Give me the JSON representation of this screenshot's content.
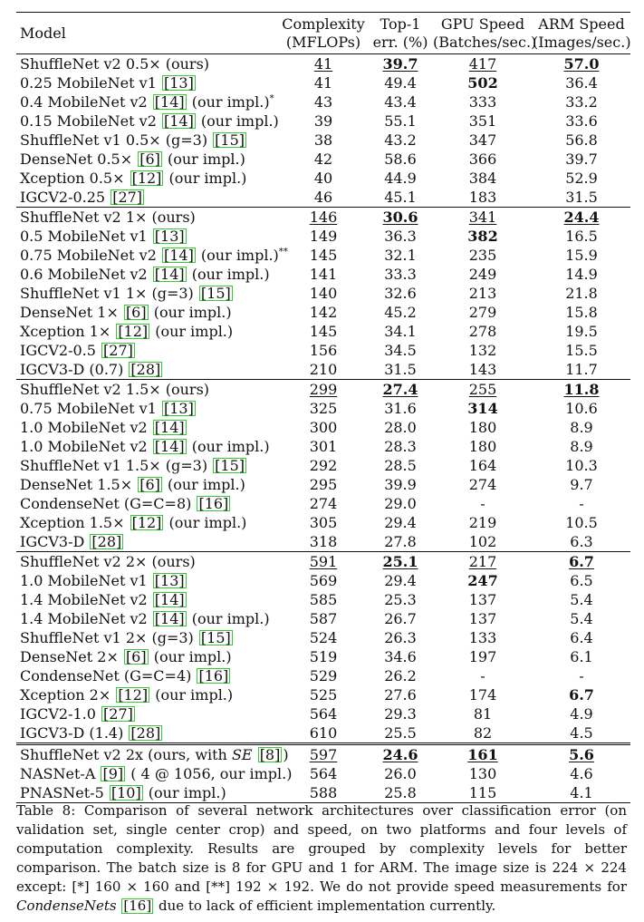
{
  "table": {
    "headers": {
      "model": "Model",
      "complexity": [
        "Complexity",
        "(MFLOPs)"
      ],
      "top1": [
        "Top-1",
        "err. (%)"
      ],
      "gpu": [
        "GPU Speed",
        "(Batches/sec.)"
      ],
      "arm": [
        "ARM Speed",
        "(Images/sec.)"
      ]
    },
    "groups": [
      {
        "rows": [
          {
            "model": [
              {
                "t": "ShuffleNet v2 0.5× (ours)"
              }
            ],
            "complexity": "41",
            "top1": "39.7",
            "gpu": "417",
            "arm": "57.0",
            "s": {
              "complexity": "u",
              "top1": "bu",
              "gpu": "u",
              "arm": "bu"
            }
          },
          {
            "model": [
              {
                "t": "0.25 MobileNet v1 "
              },
              {
                "c": "[13]"
              }
            ],
            "complexity": "41",
            "top1": "49.4",
            "gpu": "502",
            "arm": "36.4",
            "s": {
              "gpu": "b"
            }
          },
          {
            "model": [
              {
                "t": "0.4 MobileNet v2 "
              },
              {
                "c": "[14]"
              },
              {
                "t": " (our impl.)"
              },
              {
                "sup": "*"
              }
            ],
            "complexity": "43",
            "top1": "43.4",
            "gpu": "333",
            "arm": "33.2"
          },
          {
            "model": [
              {
                "t": "0.15 MobileNet v2 "
              },
              {
                "c": "[14]"
              },
              {
                "t": " (our impl.)"
              }
            ],
            "complexity": "39",
            "top1": "55.1",
            "gpu": "351",
            "arm": "33.6"
          },
          {
            "model": [
              {
                "t": "ShuffleNet v1 0.5× (g=3) "
              },
              {
                "c": "[15]"
              }
            ],
            "complexity": "38",
            "top1": "43.2",
            "gpu": "347",
            "arm": "56.8"
          },
          {
            "model": [
              {
                "t": "DenseNet 0.5× "
              },
              {
                "c": "[6]"
              },
              {
                "t": " (our impl.)"
              }
            ],
            "complexity": "42",
            "top1": "58.6",
            "gpu": "366",
            "arm": "39.7"
          },
          {
            "model": [
              {
                "t": "Xception 0.5× "
              },
              {
                "c": "[12]"
              },
              {
                "t": " (our impl.)"
              }
            ],
            "complexity": "40",
            "top1": "44.9",
            "gpu": "384",
            "arm": "52.9"
          },
          {
            "model": [
              {
                "t": "IGCV2-0.25 "
              },
              {
                "c": "[27]"
              }
            ],
            "complexity": "46",
            "top1": "45.1",
            "gpu": "183",
            "arm": "31.5"
          }
        ]
      },
      {
        "rows": [
          {
            "model": [
              {
                "t": "ShuffleNet v2 1× (ours)"
              }
            ],
            "complexity": "146",
            "top1": "30.6",
            "gpu": "341",
            "arm": "24.4",
            "s": {
              "complexity": "u",
              "top1": "bu",
              "gpu": "u",
              "arm": "bu"
            }
          },
          {
            "model": [
              {
                "t": "0.5 MobileNet v1 "
              },
              {
                "c": "[13]"
              }
            ],
            "complexity": "149",
            "top1": "36.3",
            "gpu": "382",
            "arm": "16.5",
            "s": {
              "gpu": "b"
            }
          },
          {
            "model": [
              {
                "t": "0.75 MobileNet v2 "
              },
              {
                "c": "[14]"
              },
              {
                "t": " (our impl.)"
              },
              {
                "sup": "**"
              }
            ],
            "complexity": "145",
            "top1": "32.1",
            "gpu": "235",
            "arm": "15.9"
          },
          {
            "model": [
              {
                "t": "0.6 MobileNet v2 "
              },
              {
                "c": "[14]"
              },
              {
                "t": " (our impl.)"
              }
            ],
            "complexity": "141",
            "top1": "33.3",
            "gpu": "249",
            "arm": "14.9"
          },
          {
            "model": [
              {
                "t": "ShuffleNet v1 1× (g=3) "
              },
              {
                "c": "[15]"
              }
            ],
            "complexity": "140",
            "top1": "32.6",
            "gpu": "213",
            "arm": "21.8"
          },
          {
            "model": [
              {
                "t": "DenseNet 1× "
              },
              {
                "c": "[6]"
              },
              {
                "t": " (our impl.)"
              }
            ],
            "complexity": "142",
            "top1": "45.2",
            "gpu": "279",
            "arm": "15.8"
          },
          {
            "model": [
              {
                "t": "Xception 1× "
              },
              {
                "c": "[12]"
              },
              {
                "t": " (our impl.)"
              }
            ],
            "complexity": "145",
            "top1": "34.1",
            "gpu": "278",
            "arm": "19.5"
          },
          {
            "model": [
              {
                "t": "IGCV2-0.5 "
              },
              {
                "c": "[27]"
              }
            ],
            "complexity": "156",
            "top1": "34.5",
            "gpu": "132",
            "arm": "15.5"
          },
          {
            "model": [
              {
                "t": "IGCV3-D (0.7) "
              },
              {
                "c": "[28]"
              }
            ],
            "complexity": "210",
            "top1": "31.5",
            "gpu": "143",
            "arm": "11.7"
          }
        ]
      },
      {
        "rows": [
          {
            "model": [
              {
                "t": "ShuffleNet v2 1.5× (ours)"
              }
            ],
            "complexity": "299",
            "top1": "27.4",
            "gpu": "255",
            "arm": "11.8",
            "s": {
              "complexity": "u",
              "top1": "bu",
              "gpu": "u",
              "arm": "bu"
            }
          },
          {
            "model": [
              {
                "t": "0.75 MobileNet v1 "
              },
              {
                "c": "[13]"
              }
            ],
            "complexity": "325",
            "top1": "31.6",
            "gpu": "314",
            "arm": "10.6",
            "s": {
              "gpu": "b"
            }
          },
          {
            "model": [
              {
                "t": "1.0 MobileNet v2 "
              },
              {
                "c": "[14]"
              }
            ],
            "complexity": "300",
            "top1": "28.0",
            "gpu": "180",
            "arm": "8.9"
          },
          {
            "model": [
              {
                "t": "1.0 MobileNet v2 "
              },
              {
                "c": "[14]"
              },
              {
                "t": " (our impl.)"
              }
            ],
            "complexity": "301",
            "top1": "28.3",
            "gpu": "180",
            "arm": "8.9"
          },
          {
            "model": [
              {
                "t": "ShuffleNet v1 1.5× (g=3) "
              },
              {
                "c": "[15]"
              }
            ],
            "complexity": "292",
            "top1": "28.5",
            "gpu": "164",
            "arm": "10.3"
          },
          {
            "model": [
              {
                "t": "DenseNet 1.5× "
              },
              {
                "c": "[6]"
              },
              {
                "t": " (our impl.)"
              }
            ],
            "complexity": "295",
            "top1": "39.9",
            "gpu": "274",
            "arm": "9.7"
          },
          {
            "model": [
              {
                "t": "CondenseNet (G=C=8) "
              },
              {
                "c": "[16]"
              }
            ],
            "complexity": "274",
            "top1": "29.0",
            "gpu": "-",
            "arm": "-"
          },
          {
            "model": [
              {
                "t": "Xception 1.5× "
              },
              {
                "c": "[12]"
              },
              {
                "t": " (our impl.)"
              }
            ],
            "complexity": "305",
            "top1": "29.4",
            "gpu": "219",
            "arm": "10.5"
          },
          {
            "model": [
              {
                "t": "IGCV3-D "
              },
              {
                "c": "[28]"
              }
            ],
            "complexity": "318",
            "top1": "27.8",
            "gpu": "102",
            "arm": "6.3"
          }
        ]
      },
      {
        "rows": [
          {
            "model": [
              {
                "t": "ShuffleNet v2 2× (ours)"
              }
            ],
            "complexity": "591",
            "top1": "25.1",
            "gpu": "217",
            "arm": "6.7",
            "s": {
              "complexity": "u",
              "top1": "bu",
              "gpu": "u",
              "arm": "bu"
            }
          },
          {
            "model": [
              {
                "t": "1.0 MobileNet v1 "
              },
              {
                "c": "[13]"
              }
            ],
            "complexity": "569",
            "top1": "29.4",
            "gpu": "247",
            "arm": "6.5",
            "s": {
              "gpu": "b"
            }
          },
          {
            "model": [
              {
                "t": "1.4 MobileNet v2 "
              },
              {
                "c": "[14]"
              }
            ],
            "complexity": "585",
            "top1": "25.3",
            "gpu": "137",
            "arm": "5.4"
          },
          {
            "model": [
              {
                "t": "1.4 MobileNet v2 "
              },
              {
                "c": "[14]"
              },
              {
                "t": " (our impl.)"
              }
            ],
            "complexity": "587",
            "top1": "26.7",
            "gpu": "137",
            "arm": "5.4"
          },
          {
            "model": [
              {
                "t": "ShuffleNet v1 2× (g=3) "
              },
              {
                "c": "[15]"
              }
            ],
            "complexity": "524",
            "top1": "26.3",
            "gpu": "133",
            "arm": "6.4"
          },
          {
            "model": [
              {
                "t": "DenseNet 2× "
              },
              {
                "c": "[6]"
              },
              {
                "t": " (our impl.)"
              }
            ],
            "complexity": "519",
            "top1": "34.6",
            "gpu": "197",
            "arm": "6.1"
          },
          {
            "model": [
              {
                "t": "CondenseNet (G=C=4) "
              },
              {
                "c": "[16]"
              }
            ],
            "complexity": "529",
            "top1": "26.2",
            "gpu": "-",
            "arm": "-"
          },
          {
            "model": [
              {
                "t": "Xception 2× "
              },
              {
                "c": "[12]"
              },
              {
                "t": " (our impl.)"
              }
            ],
            "complexity": "525",
            "top1": "27.6",
            "gpu": "174",
            "arm": "6.7",
            "s": {
              "arm": "b"
            }
          },
          {
            "model": [
              {
                "t": "IGCV2-1.0 "
              },
              {
                "c": "[27]"
              }
            ],
            "complexity": "564",
            "top1": "29.3",
            "gpu": "81",
            "arm": "4.9"
          },
          {
            "model": [
              {
                "t": "IGCV3-D (1.4) "
              },
              {
                "c": "[28]"
              }
            ],
            "complexity": "610",
            "top1": "25.5",
            "gpu": "82",
            "arm": "4.5"
          }
        ]
      },
      {
        "double": true,
        "rows": [
          {
            "model": [
              {
                "t": "ShuffleNet v2 2x (ours, with "
              },
              {
                "i": "SE"
              },
              {
                "t": " "
              },
              {
                "c": "[8]"
              },
              {
                "t": ")"
              }
            ],
            "complexity": "597",
            "top1": "24.6",
            "gpu": "161",
            "arm": "5.6",
            "s": {
              "complexity": "u",
              "top1": "bu",
              "gpu": "bu",
              "arm": "bu"
            }
          },
          {
            "model": [
              {
                "t": "NASNet-A "
              },
              {
                "c": "[9]"
              },
              {
                "t": " ( 4 @ 1056, our impl.)"
              }
            ],
            "complexity": "564",
            "top1": "26.0",
            "gpu": "130",
            "arm": "4.6"
          },
          {
            "model": [
              {
                "t": "PNASNet-5 "
              },
              {
                "c": "[10]"
              },
              {
                "t": " (our impl.)"
              }
            ],
            "complexity": "588",
            "top1": "25.8",
            "gpu": "115",
            "arm": "4.1"
          }
        ]
      }
    ]
  },
  "caption": [
    {
      "t": "Table 8: Comparison of several network architectures over classification error (on validation set, single center crop) and speed, on two platforms and four levels of computation complexity. Results are grouped by complexity levels for better comparison. The batch size is 8 for GPU and 1 for ARM. The image size is 224 × 224 except: [*] 160 × 160 and [**] 192 × 192. We do not provide speed measurements for "
    },
    {
      "i": "CondenseNets"
    },
    {
      "t": " "
    },
    {
      "c": "[16]"
    },
    {
      "t": " due to lack of efficient implementation currently."
    }
  ]
}
